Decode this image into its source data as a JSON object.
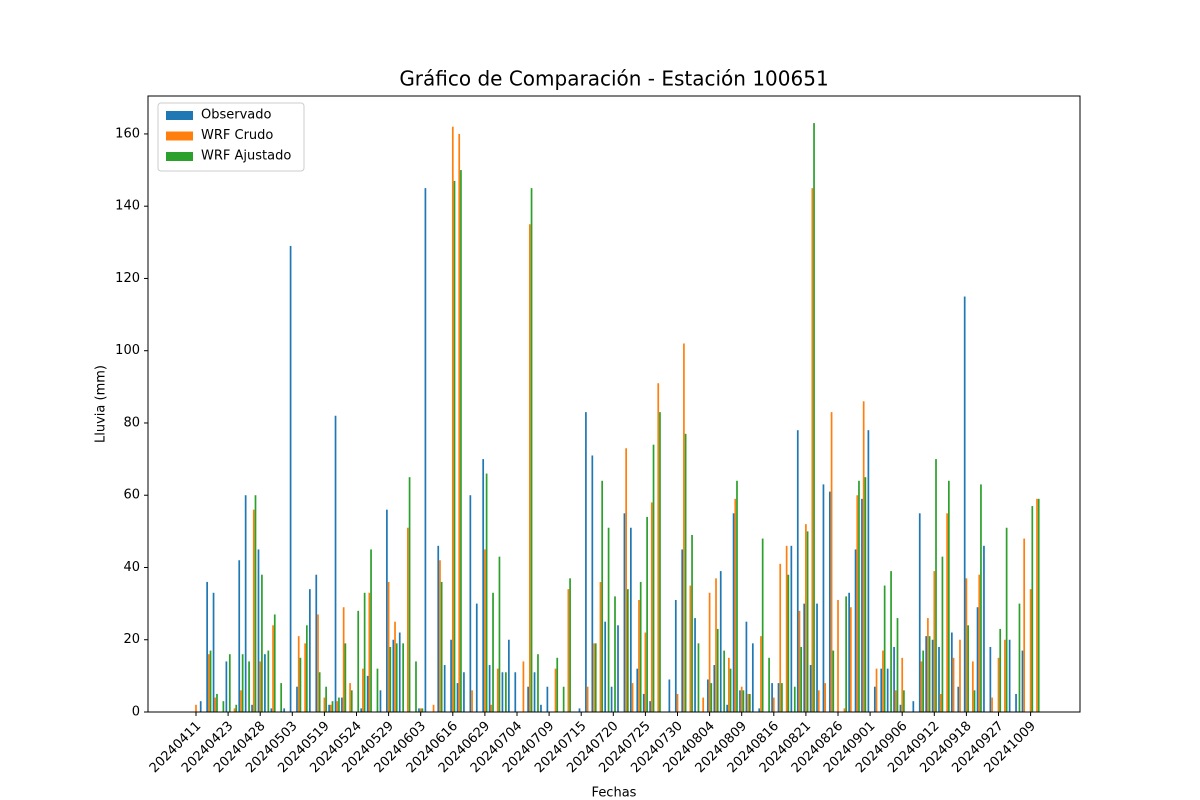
{
  "chart_data": {
    "type": "bar",
    "title": "Gráfico de Comparación - Estación 100651",
    "x_label": "Fechas",
    "y_label": "Lluvia (mm)",
    "categories": [
      "20240411",
      null,
      null,
      null,
      null,
      "20240423",
      null,
      null,
      null,
      null,
      "20240428",
      null,
      null,
      null,
      null,
      "20240503",
      null,
      null,
      null,
      null,
      "20240519",
      null,
      null,
      null,
      null,
      "20240524",
      null,
      null,
      null,
      null,
      "20240529",
      null,
      null,
      null,
      null,
      "20240603",
      null,
      null,
      null,
      null,
      "20240616",
      null,
      null,
      null,
      null,
      "20240629",
      null,
      null,
      null,
      null,
      "20240704",
      null,
      null,
      null,
      null,
      "20240709",
      null,
      null,
      null,
      null,
      "20240715",
      null,
      null,
      null,
      null,
      "20240720",
      null,
      null,
      null,
      null,
      "20240725",
      null,
      null,
      null,
      null,
      "20240730",
      null,
      null,
      null,
      null,
      "20240804",
      null,
      null,
      null,
      null,
      "20240809",
      null,
      null,
      null,
      null,
      "20240816",
      null,
      null,
      null,
      null,
      "20240821",
      null,
      null,
      null,
      null,
      "20240826",
      null,
      null,
      null,
      null,
      "20240901",
      null,
      null,
      null,
      null,
      "20240906",
      null,
      null,
      null,
      null,
      "20240912",
      null,
      null,
      null,
      null,
      "20240918",
      null,
      null,
      null,
      null,
      "20240927",
      null,
      null,
      null,
      null,
      "20241009",
      null
    ],
    "series": [
      {
        "name": "Observado",
        "color": "#1f77b4",
        "values": [
          0,
          3,
          36,
          33,
          0,
          14,
          0,
          42,
          60,
          2,
          45,
          16,
          1,
          0,
          1,
          129,
          7,
          0,
          34,
          38,
          0,
          2,
          82,
          4,
          0,
          0,
          1,
          10,
          0,
          6,
          56,
          20,
          22,
          0,
          0,
          1,
          145,
          0,
          46,
          13,
          20,
          8,
          11,
          60,
          30,
          70,
          13,
          0,
          11,
          20,
          11,
          0,
          7,
          11,
          2,
          7,
          0,
          0,
          0,
          0,
          1,
          83,
          71,
          0,
          25,
          7,
          24,
          55,
          51,
          12,
          5,
          3,
          0,
          0,
          9,
          31,
          45,
          0,
          26,
          0,
          9,
          13,
          39,
          2,
          55,
          6,
          25,
          19,
          1,
          0,
          8,
          8,
          0,
          46,
          78,
          30,
          13,
          30,
          63,
          61,
          0,
          0,
          33,
          45,
          59,
          78,
          7,
          12,
          12,
          18,
          2,
          0,
          3,
          55,
          21,
          20,
          18,
          0,
          22,
          7,
          115,
          0,
          29,
          46,
          18,
          0,
          0,
          20,
          5,
          17,
          0,
          0
        ]
      },
      {
        "name": "WRF Crudo",
        "color": "#ff7f0e",
        "values": [
          2,
          0,
          16,
          4,
          0,
          0,
          1,
          6,
          0,
          56,
          14,
          0,
          24,
          0,
          0,
          0,
          21,
          19,
          0,
          27,
          4,
          2,
          3,
          29,
          8,
          0,
          12,
          33,
          0,
          0,
          36,
          25,
          0,
          51,
          0,
          1,
          0,
          2,
          42,
          0,
          162,
          160,
          0,
          6,
          0,
          45,
          2,
          12,
          0,
          0,
          0,
          14,
          135,
          0,
          0,
          0,
          12,
          0,
          34,
          0,
          0,
          7,
          19,
          36,
          0,
          0,
          0,
          73,
          8,
          31,
          22,
          58,
          91,
          0,
          0,
          5,
          102,
          35,
          0,
          4,
          33,
          37,
          0,
          15,
          59,
          7,
          5,
          0,
          21,
          0,
          4,
          41,
          46,
          0,
          28,
          52,
          145,
          6,
          8,
          83,
          31,
          1,
          29,
          60,
          86,
          0,
          12,
          17,
          0,
          6,
          15,
          0,
          0,
          14,
          26,
          39,
          5,
          55,
          15,
          20,
          37,
          14,
          38,
          0,
          4,
          15,
          20,
          0,
          0,
          48,
          34,
          59
        ]
      },
      {
        "name": "WRF Ajustado",
        "color": "#2ca02c",
        "values": [
          0,
          0,
          17,
          5,
          3,
          16,
          2,
          16,
          14,
          60,
          38,
          17,
          27,
          8,
          0,
          0,
          15,
          24,
          0,
          11,
          7,
          3,
          4,
          19,
          6,
          28,
          33,
          45,
          12,
          0,
          18,
          19,
          19,
          65,
          14,
          1,
          0,
          0,
          36,
          0,
          147,
          150,
          0,
          0,
          0,
          66,
          33,
          43,
          11,
          0,
          0,
          0,
          145,
          16,
          0,
          0,
          15,
          7,
          37,
          0,
          0,
          0,
          19,
          64,
          51,
          32,
          0,
          34,
          0,
          36,
          54,
          74,
          83,
          0,
          0,
          0,
          77,
          49,
          19,
          0,
          8,
          23,
          17,
          12,
          64,
          6,
          5,
          0,
          48,
          15,
          0,
          8,
          38,
          7,
          18,
          50,
          163,
          0,
          0,
          17,
          0,
          32,
          0,
          64,
          65,
          0,
          0,
          35,
          39,
          26,
          6,
          0,
          0,
          17,
          21,
          70,
          43,
          64,
          0,
          0,
          24,
          6,
          63,
          0,
          0,
          23,
          51,
          0,
          30,
          0,
          57,
          59
        ]
      }
    ],
    "ylim": [
      0,
      170.5
    ],
    "yticks": [
      0,
      20,
      40,
      60,
      80,
      100,
      120,
      140,
      160
    ],
    "legend": "upper left"
  }
}
